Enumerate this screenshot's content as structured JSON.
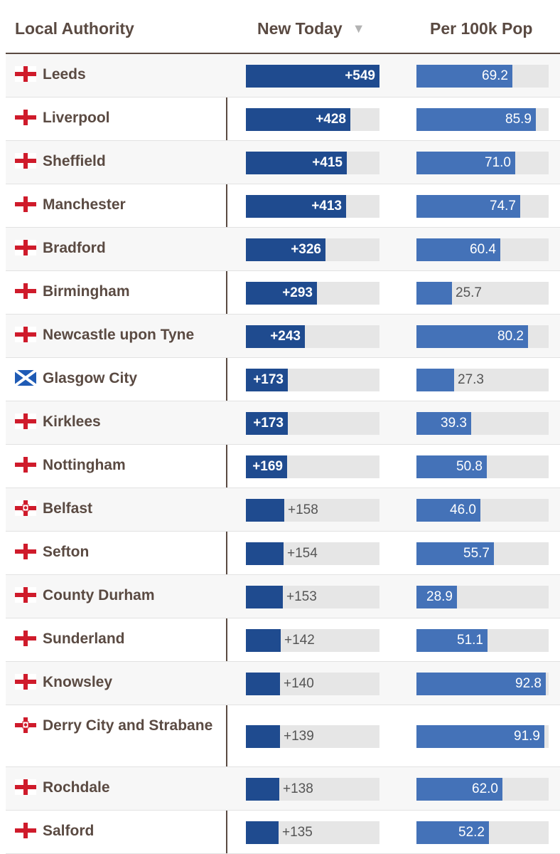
{
  "header": {
    "local_authority": "Local Authority",
    "new_today": "New Today",
    "sort_arrow": "▼",
    "per_100k": "Per 100k Pop"
  },
  "colors": {
    "new_bar": "#1f4b8f",
    "per_bar": "#4472b8",
    "track": "#e6e6e6",
    "text": "#5a4a42"
  },
  "chart_data": {
    "type": "table",
    "columns": [
      "Local Authority",
      "New Today",
      "Per 100k Pop"
    ],
    "sort_column": "New Today",
    "sort_order": "descending",
    "new_today_max": 549,
    "per_100k_max": 95,
    "rows": [
      {
        "name": "Leeds",
        "flag": "england",
        "new": 549,
        "new_label": "+549",
        "per": 69.2,
        "per_label": "69.2"
      },
      {
        "name": "Liverpool",
        "flag": "england",
        "new": 428,
        "new_label": "+428",
        "per": 85.9,
        "per_label": "85.9"
      },
      {
        "name": "Sheffield",
        "flag": "england",
        "new": 415,
        "new_label": "+415",
        "per": 71.0,
        "per_label": "71.0"
      },
      {
        "name": "Manchester",
        "flag": "england",
        "new": 413,
        "new_label": "+413",
        "per": 74.7,
        "per_label": "74.7"
      },
      {
        "name": "Bradford",
        "flag": "england",
        "new": 326,
        "new_label": "+326",
        "per": 60.4,
        "per_label": "60.4"
      },
      {
        "name": "Birmingham",
        "flag": "england",
        "new": 293,
        "new_label": "+293",
        "per": 25.7,
        "per_label": "25.7"
      },
      {
        "name": "Newcastle upon Tyne",
        "flag": "england",
        "new": 243,
        "new_label": "+243",
        "per": 80.2,
        "per_label": "80.2"
      },
      {
        "name": "Glasgow City",
        "flag": "scotland",
        "new": 173,
        "new_label": "+173",
        "per": 27.3,
        "per_label": "27.3"
      },
      {
        "name": "Kirklees",
        "flag": "england",
        "new": 173,
        "new_label": "+173",
        "per": 39.3,
        "per_label": "39.3"
      },
      {
        "name": "Nottingham",
        "flag": "england",
        "new": 169,
        "new_label": "+169",
        "per": 50.8,
        "per_label": "50.8"
      },
      {
        "name": "Belfast",
        "flag": "northern-ireland",
        "new": 158,
        "new_label": "+158",
        "per": 46.0,
        "per_label": "46.0"
      },
      {
        "name": "Sefton",
        "flag": "england",
        "new": 154,
        "new_label": "+154",
        "per": 55.7,
        "per_label": "55.7"
      },
      {
        "name": "County Durham",
        "flag": "england",
        "new": 153,
        "new_label": "+153",
        "per": 28.9,
        "per_label": "28.9"
      },
      {
        "name": "Sunderland",
        "flag": "england",
        "new": 142,
        "new_label": "+142",
        "per": 51.1,
        "per_label": "51.1"
      },
      {
        "name": "Knowsley",
        "flag": "england",
        "new": 140,
        "new_label": "+140",
        "per": 92.8,
        "per_label": "92.8"
      },
      {
        "name": "Derry City and Strabane",
        "flag": "northern-ireland",
        "new": 139,
        "new_label": "+139",
        "per": 91.9,
        "per_label": "91.9"
      },
      {
        "name": "Rochdale",
        "flag": "england",
        "new": 138,
        "new_label": "+138",
        "per": 62.0,
        "per_label": "62.0"
      },
      {
        "name": "Salford",
        "flag": "england",
        "new": 135,
        "new_label": "+135",
        "per": 52.2,
        "per_label": "52.2"
      }
    ]
  }
}
